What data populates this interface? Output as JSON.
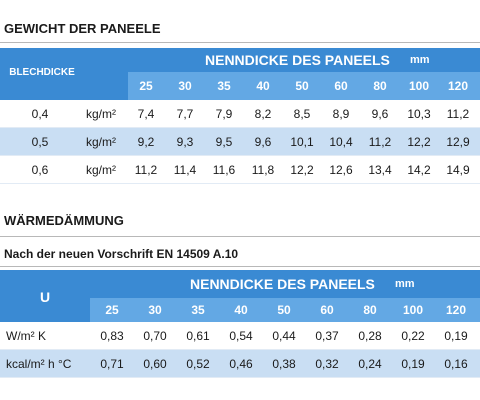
{
  "section1": {
    "title": "GEWICHT DER PANEELE",
    "table": {
      "row_header": "BLECHDICKE",
      "column_header": "NENNDICKE DES PANEELS",
      "column_unit": "mm",
      "columns": [
        25,
        30,
        35,
        40,
        50,
        60,
        80,
        100,
        120
      ],
      "rows": [
        {
          "label": "0,4",
          "unit": "kg/m²",
          "values": [
            "7,4",
            "7,7",
            "7,9",
            "8,2",
            "8,5",
            "8,9",
            "9,6",
            "10,3",
            "11,2"
          ]
        },
        {
          "label": "0,5",
          "unit": "kg/m²",
          "values": [
            "9,2",
            "9,3",
            "9,5",
            "9,6",
            "10,1",
            "10,4",
            "11,2",
            "12,2",
            "12,9"
          ]
        },
        {
          "label": "0,6",
          "unit": "kg/m²",
          "values": [
            "11,2",
            "11,4",
            "11,6",
            "11,8",
            "12,2",
            "12,6",
            "13,4",
            "14,2",
            "14,9"
          ]
        }
      ]
    }
  },
  "section2": {
    "title": "WÄRMEDÄMMUNG",
    "subtitle": "Nach der neuen Vorschrift EN 14509 A.10",
    "table": {
      "row_header": "U",
      "column_header": "NENNDICKE DES PANEELS",
      "column_unit": "mm",
      "columns": [
        25,
        30,
        35,
        40,
        50,
        60,
        80,
        100,
        120
      ],
      "rows": [
        {
          "label": "W/m² K",
          "values": [
            "0,83",
            "0,70",
            "0,61",
            "0,54",
            "0,44",
            "0,37",
            "0,28",
            "0,22",
            "0,19"
          ]
        },
        {
          "label": "kcal/m² h °C",
          "values": [
            "0,71",
            "0,60",
            "0,52",
            "0,46",
            "0,38",
            "0,32",
            "0,24",
            "0,19",
            "0,16"
          ]
        }
      ]
    }
  }
}
